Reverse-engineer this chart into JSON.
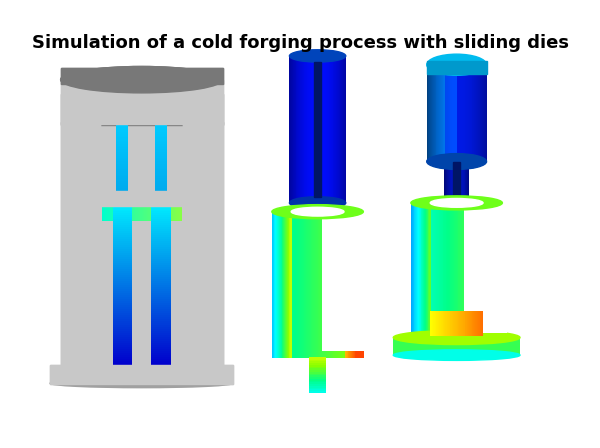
{
  "title": "Simulation of a cold forging process with sliding dies",
  "title_fontsize": 13,
  "title_fontweight": "bold",
  "title_color": "#000000",
  "background_color": "#ffffff",
  "fig_width": 6.0,
  "fig_height": 4.48,
  "dpi": 100,
  "gray_light": "#c8c8c8",
  "gray_mid": "#a0a0a0",
  "gray_dark": "#787878",
  "gray_darker": "#585858",
  "blue_deep": "#0000bb",
  "blue_mid": "#0033dd",
  "blue_bright": "#0066ff",
  "cyan_bright": "#00ddff",
  "green_bright": "#00ee88",
  "yellow_bright": "#ffee00",
  "orange_bright": "#ff9900"
}
